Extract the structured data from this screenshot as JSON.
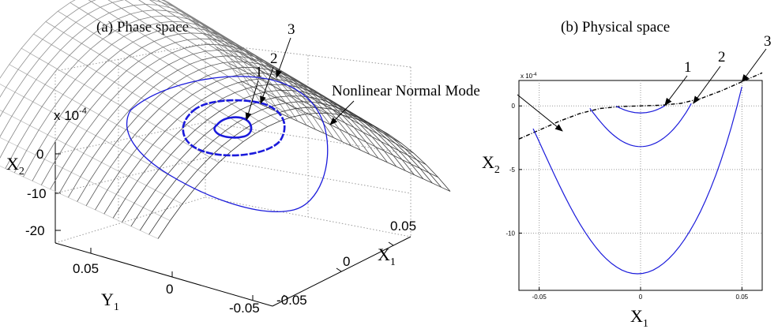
{
  "figure": {
    "colors": {
      "orbit": "#1a1adb",
      "nnm": "#000000",
      "mesh": "#888888",
      "grid": "#bdbdbd"
    }
  },
  "chart_data": [
    {
      "type": "surface3d",
      "title": "(a) Phase space",
      "scale_note": "x 10",
      "scale_exp": "-4",
      "axes": {
        "x": {
          "label": "X",
          "sub": "1",
          "ticks": [
            "0.05",
            "0",
            "-0.05"
          ]
        },
        "y": {
          "label": "Y",
          "sub": "1",
          "ticks": [
            "0.05",
            "0",
            "-0.05"
          ]
        },
        "z": {
          "label": "X",
          "sub": "2",
          "ticks": [
            "0",
            "-10",
            "-20"
          ]
        }
      },
      "annotation": "Nonlinear Normal Mode",
      "orbit_labels": [
        "1",
        "2",
        "3"
      ]
    },
    {
      "type": "line",
      "title": "(b) Physical space",
      "scale_note": "x 10",
      "scale_exp": "-4",
      "xlabel": "X",
      "xlabel_sub": "1",
      "ylabel": "X",
      "ylabel_sub": "2",
      "xticks": [
        "-0.05",
        "0",
        "0.05"
      ],
      "yticks": [
        "0",
        "-5",
        "-10"
      ],
      "xlim": [
        -0.06,
        0.06
      ],
      "ylim": [
        -14.5,
        2
      ],
      "grid": true,
      "series": [
        {
          "kind": "nnm",
          "x": [
            -0.06,
            -0.05,
            -0.04,
            -0.03,
            -0.02,
            -0.01,
            0,
            0.01,
            0.02,
            0.03,
            0.04,
            0.05,
            0.06
          ],
          "y": [
            -2.6,
            -1.9,
            -1.2,
            -0.6,
            -0.2,
            -0.05,
            0,
            0.05,
            0.2,
            0.6,
            1.2,
            1.9,
            2.6
          ]
        },
        {
          "kind": "orbit",
          "label": "1",
          "x_min": -0.012,
          "x_max": 0.012,
          "y_bottom": -0.55
        },
        {
          "kind": "orbit",
          "label": "2",
          "x_min": -0.025,
          "x_max": 0.025,
          "y_bottom": -3.2
        },
        {
          "kind": "orbit",
          "label": "3",
          "x_min": -0.053,
          "x_max": 0.05,
          "y_bottom": -13.2
        }
      ],
      "annotation": "Nonlinear Normal Mode",
      "orbit_labels": [
        "1",
        "2",
        "3"
      ]
    }
  ]
}
